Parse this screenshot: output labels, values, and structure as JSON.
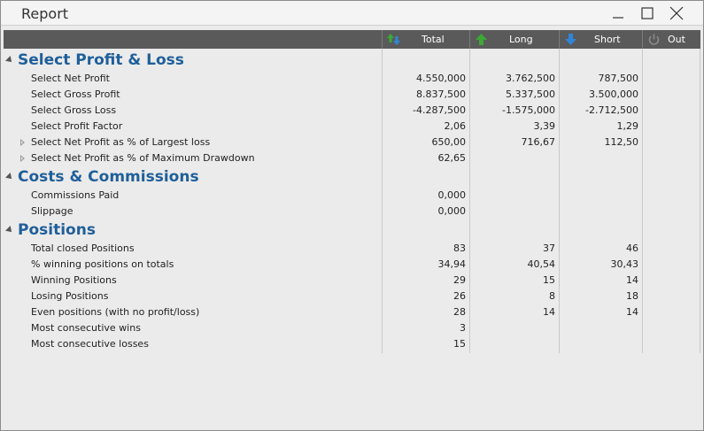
{
  "window": {
    "title": "Report"
  },
  "columns": [
    {
      "key": "total",
      "label": "Total",
      "icon": "up-down-arrows-icon"
    },
    {
      "key": "long",
      "label": "Long",
      "icon": "green-up-arrow-icon"
    },
    {
      "key": "short",
      "label": "Short",
      "icon": "blue-down-arrow-icon"
    },
    {
      "key": "out",
      "label": "Out",
      "icon": "power-icon"
    }
  ],
  "sections": [
    {
      "title": "Select Profit & Loss",
      "rows": [
        {
          "label": "Select Net Profit",
          "total": "4.550,000",
          "long": "3.762,500",
          "short": "787,500",
          "expandable": false
        },
        {
          "label": "Select Gross Profit",
          "total": "8.837,500",
          "long": "5.337,500",
          "short": "3.500,000",
          "expandable": false
        },
        {
          "label": "Select Gross Loss",
          "total": "-4.287,500",
          "long": "-1.575,000",
          "short": "-2.712,500",
          "expandable": false
        },
        {
          "label": "Select Profit Factor",
          "total": "2,06",
          "long": "3,39",
          "short": "1,29",
          "expandable": false
        },
        {
          "label": "Select Net Profit as % of Largest loss",
          "total": "650,00",
          "long": "716,67",
          "short": "112,50",
          "expandable": true
        },
        {
          "label": "Select Net Profit as % of Maximum Drawdown",
          "total": "62,65",
          "long": "",
          "short": "",
          "expandable": true
        }
      ]
    },
    {
      "title": "Costs & Commissions",
      "rows": [
        {
          "label": "Commissions Paid",
          "total": "0,000",
          "long": "",
          "short": "",
          "expandable": false
        },
        {
          "label": "Slippage",
          "total": "0,000",
          "long": "",
          "short": "",
          "expandable": false
        }
      ]
    },
    {
      "title": "Positions",
      "rows": [
        {
          "label": "Total closed Positions",
          "total": "83",
          "long": "37",
          "short": "46",
          "expandable": false
        },
        {
          "label": "% winning positions on totals",
          "total": "34,94",
          "long": "40,54",
          "short": "30,43",
          "expandable": false
        },
        {
          "label": "Winning Positions",
          "total": "29",
          "long": "15",
          "short": "14",
          "expandable": false
        },
        {
          "label": "Losing Positions",
          "total": "26",
          "long": "8",
          "short": "18",
          "expandable": false
        },
        {
          "label": "Even positions (with no profit/loss)",
          "total": "28",
          "long": "14",
          "short": "14",
          "expandable": false
        },
        {
          "label": "Most consecutive wins",
          "total": "3",
          "long": "",
          "short": "",
          "expandable": false
        },
        {
          "label": "Most consecutive losses",
          "total": "15",
          "long": "",
          "short": "",
          "expandable": false
        }
      ]
    }
  ],
  "colors": {
    "header_bg": "#5a5a5a",
    "section_title": "#1f5f9a",
    "long_icon": "#3aa935",
    "short_icon": "#2f86d6"
  }
}
